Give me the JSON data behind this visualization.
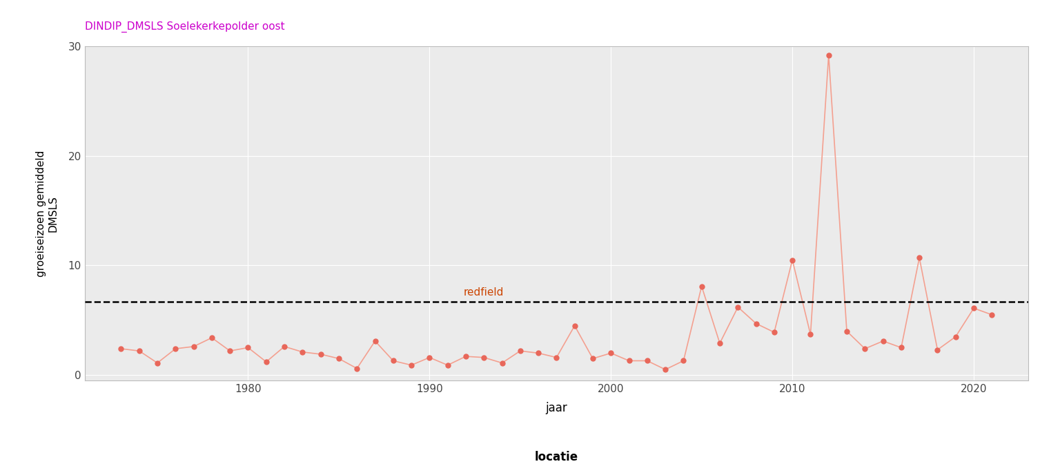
{
  "title": "DINDIP_DMSLS Soelekerkepolder oost",
  "title_color": "#CC00CC",
  "xlabel": "jaar",
  "ylabel": "groeiseizoen gemiddeld\nDMSLS",
  "redfield_label": "redfield",
  "redfield_value": 6.7,
  "redfield_color": "#CC4400",
  "redfield_x": 1993,
  "ylim": [
    -0.5,
    30
  ],
  "yticks": [
    0,
    10,
    20,
    30
  ],
  "xlim": [
    1971,
    2023
  ],
  "xticks": [
    1980,
    1990,
    2000,
    2010,
    2020
  ],
  "legend_label": "Soelekerkepolder oost",
  "legend_title": "locatie",
  "line_color": "#F4A090",
  "marker_color": "#E8675A",
  "marker_size": 5,
  "background_color": "#FFFFFF",
  "panel_background": "#EBEBEB",
  "grid_color": "#FFFFFF",
  "years": [
    1973,
    1974,
    1975,
    1976,
    1977,
    1978,
    1979,
    1980,
    1981,
    1982,
    1983,
    1984,
    1985,
    1986,
    1987,
    1988,
    1989,
    1990,
    1991,
    1992,
    1993,
    1994,
    1995,
    1996,
    1997,
    1998,
    1999,
    2000,
    2001,
    2002,
    2003,
    2004,
    2005,
    2006,
    2007,
    2008,
    2009,
    2010,
    2011,
    2012,
    2013,
    2014,
    2015,
    2016,
    2017,
    2018,
    2019,
    2020,
    2021
  ],
  "values": [
    2.4,
    2.2,
    1.1,
    2.4,
    2.6,
    3.4,
    2.2,
    2.5,
    1.2,
    2.6,
    2.1,
    1.9,
    1.5,
    0.6,
    3.1,
    1.3,
    0.9,
    1.6,
    0.9,
    1.7,
    1.6,
    1.1,
    2.2,
    2.0,
    1.6,
    4.5,
    1.5,
    2.0,
    1.3,
    1.3,
    0.5,
    1.3,
    8.1,
    2.9,
    6.2,
    4.7,
    3.9,
    10.5,
    3.7,
    29.2,
    4.0,
    2.4,
    3.1,
    2.5,
    10.7,
    2.3,
    3.5,
    6.1,
    5.5
  ]
}
